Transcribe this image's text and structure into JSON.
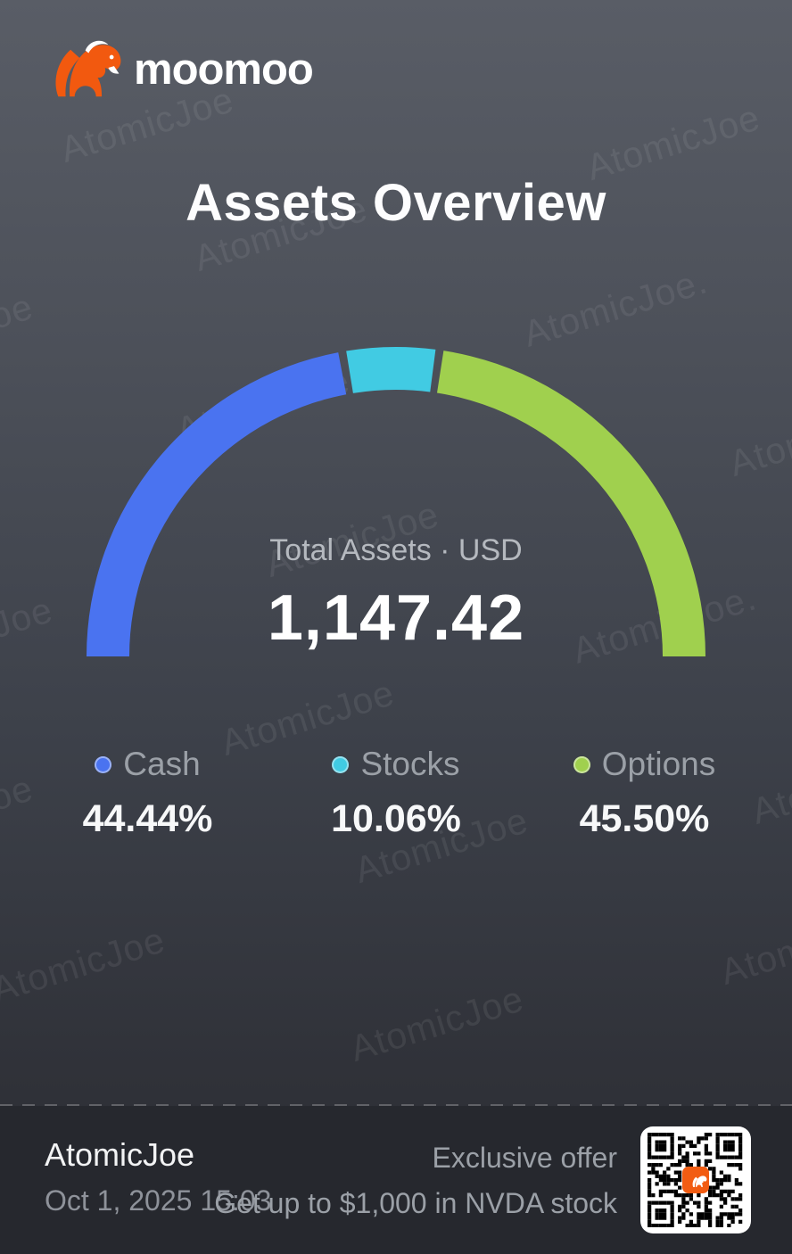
{
  "brand": {
    "name": "moomoo"
  },
  "page_title": "Assets Overview",
  "watermark": {
    "text": "AtomicJoe",
    "text_alt": "AtomicJoe."
  },
  "chart_data": {
    "type": "pie",
    "subtype": "semicircle-donut-gauge",
    "title": "Assets Overview",
    "center_label": "Total Assets · USD",
    "center_value": "1,147.42",
    "categories": [
      "Cash",
      "Stocks",
      "Options"
    ],
    "values": [
      44.44,
      10.06,
      45.5
    ],
    "value_labels": [
      "44.44%",
      "10.06%",
      "45.50%"
    ],
    "colors": [
      "#4A73F0",
      "#41CBE3",
      "#A0D04E"
    ],
    "legend_position": "bottom",
    "angle_span_deg": 180
  },
  "footer": {
    "username": "AtomicJoe",
    "timestamp": "Oct 1, 2025 15:03",
    "offer_line1": "Exclusive offer",
    "offer_line2": "Get up to $1,000 in NVDA stock"
  },
  "theme": {
    "brand_orange": "#F2590F",
    "bg_top": "#595D66",
    "bg_bottom": "#2A2C33",
    "footer_bg": "#26282E"
  }
}
